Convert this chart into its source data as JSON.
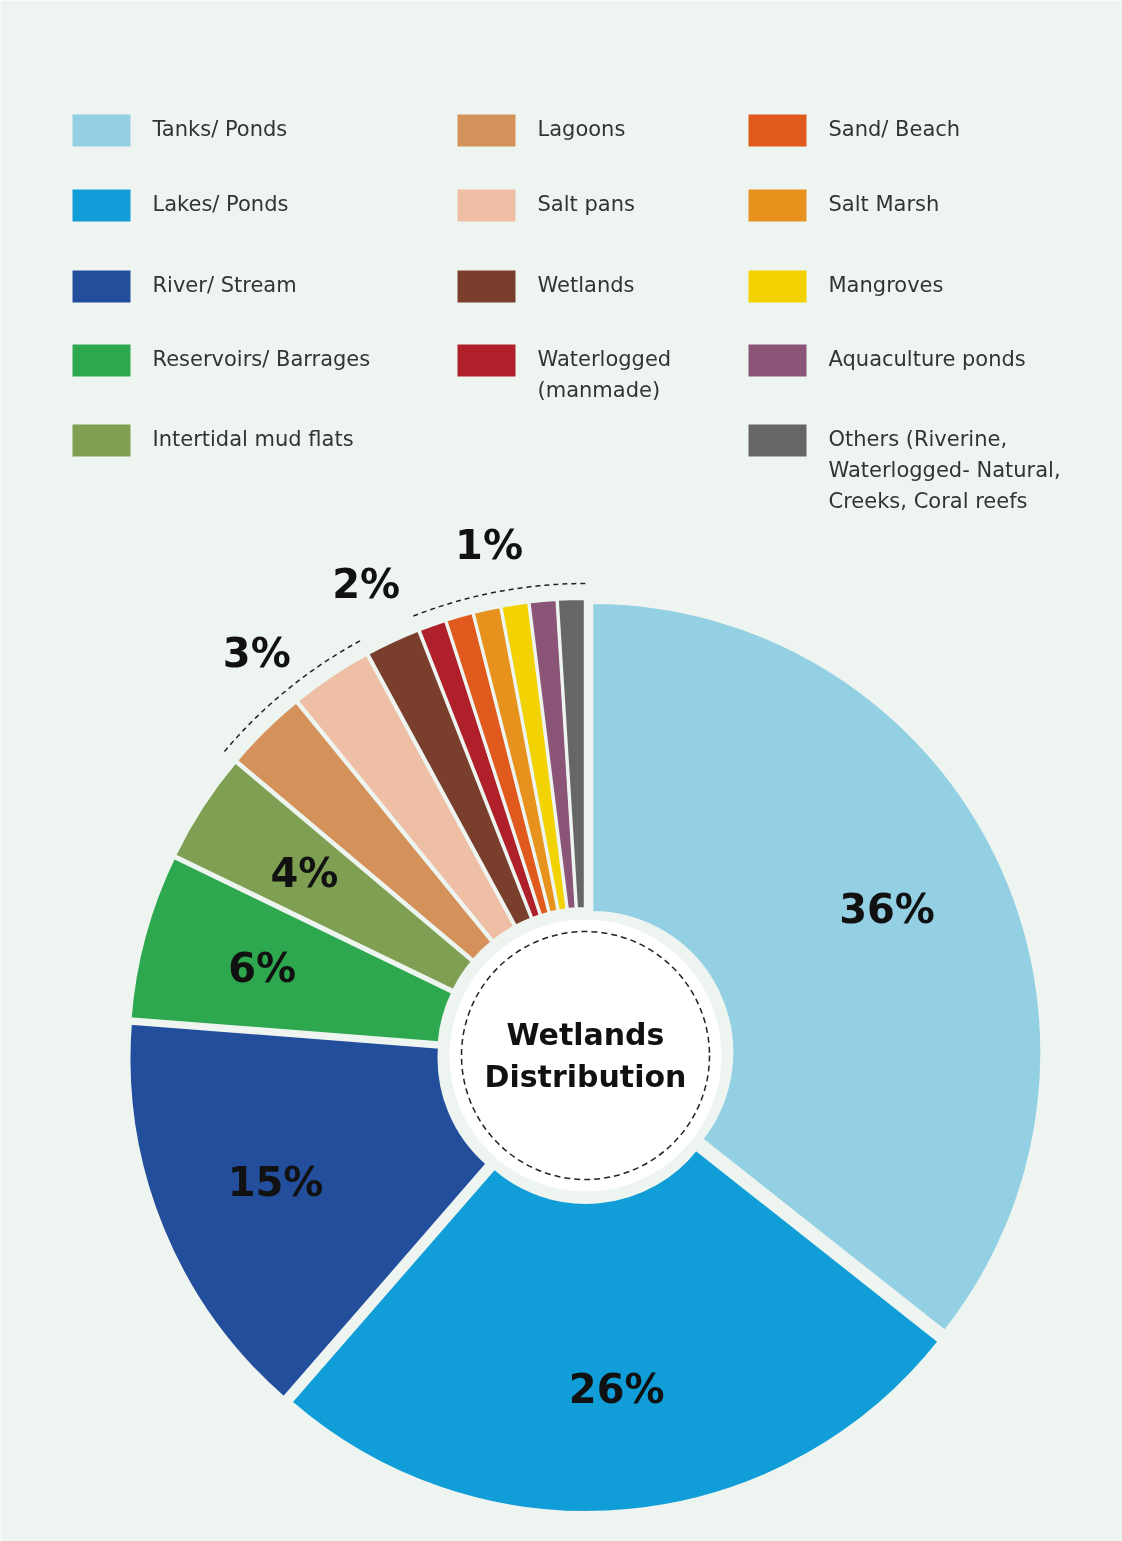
{
  "chart_data": {
    "type": "donut",
    "title": "Wetlands Distribution",
    "categories": [
      "Tanks/ Ponds",
      "Lakes/ Ponds",
      "River/ Stream",
      "Reservoirs/  Barrages",
      "Intertidal mud flats",
      "Lagoons",
      "Salt pans",
      "Wetlands",
      "Waterlogged (manmade)",
      "Sand/ Beach",
      "Salt Marsh",
      "Mangroves",
      "Aquaculture ponds",
      "Others (Riverine, Waterlogged- Natural, Creeks, Coral reefs"
    ],
    "values": [
      36,
      26,
      15,
      6,
      4,
      3,
      3,
      2,
      1,
      1,
      1,
      1,
      1,
      1
    ],
    "colors": [
      "#94d0e3",
      "#119ed8",
      "#234e9c",
      "#2ea84f",
      "#7fa052",
      "#d4925a",
      "#eebfa5",
      "#7a3f2c",
      "#b0202a",
      "#e05a1e",
      "#e8921e",
      "#f2d200",
      "#8a5577",
      "#666666"
    ],
    "value_labels": [
      "36%",
      "26%",
      "15%",
      "6%",
      "4%",
      "3%",
      null,
      "2%",
      null,
      null,
      "1%",
      null,
      null,
      null
    ],
    "legend": "top"
  }
}
